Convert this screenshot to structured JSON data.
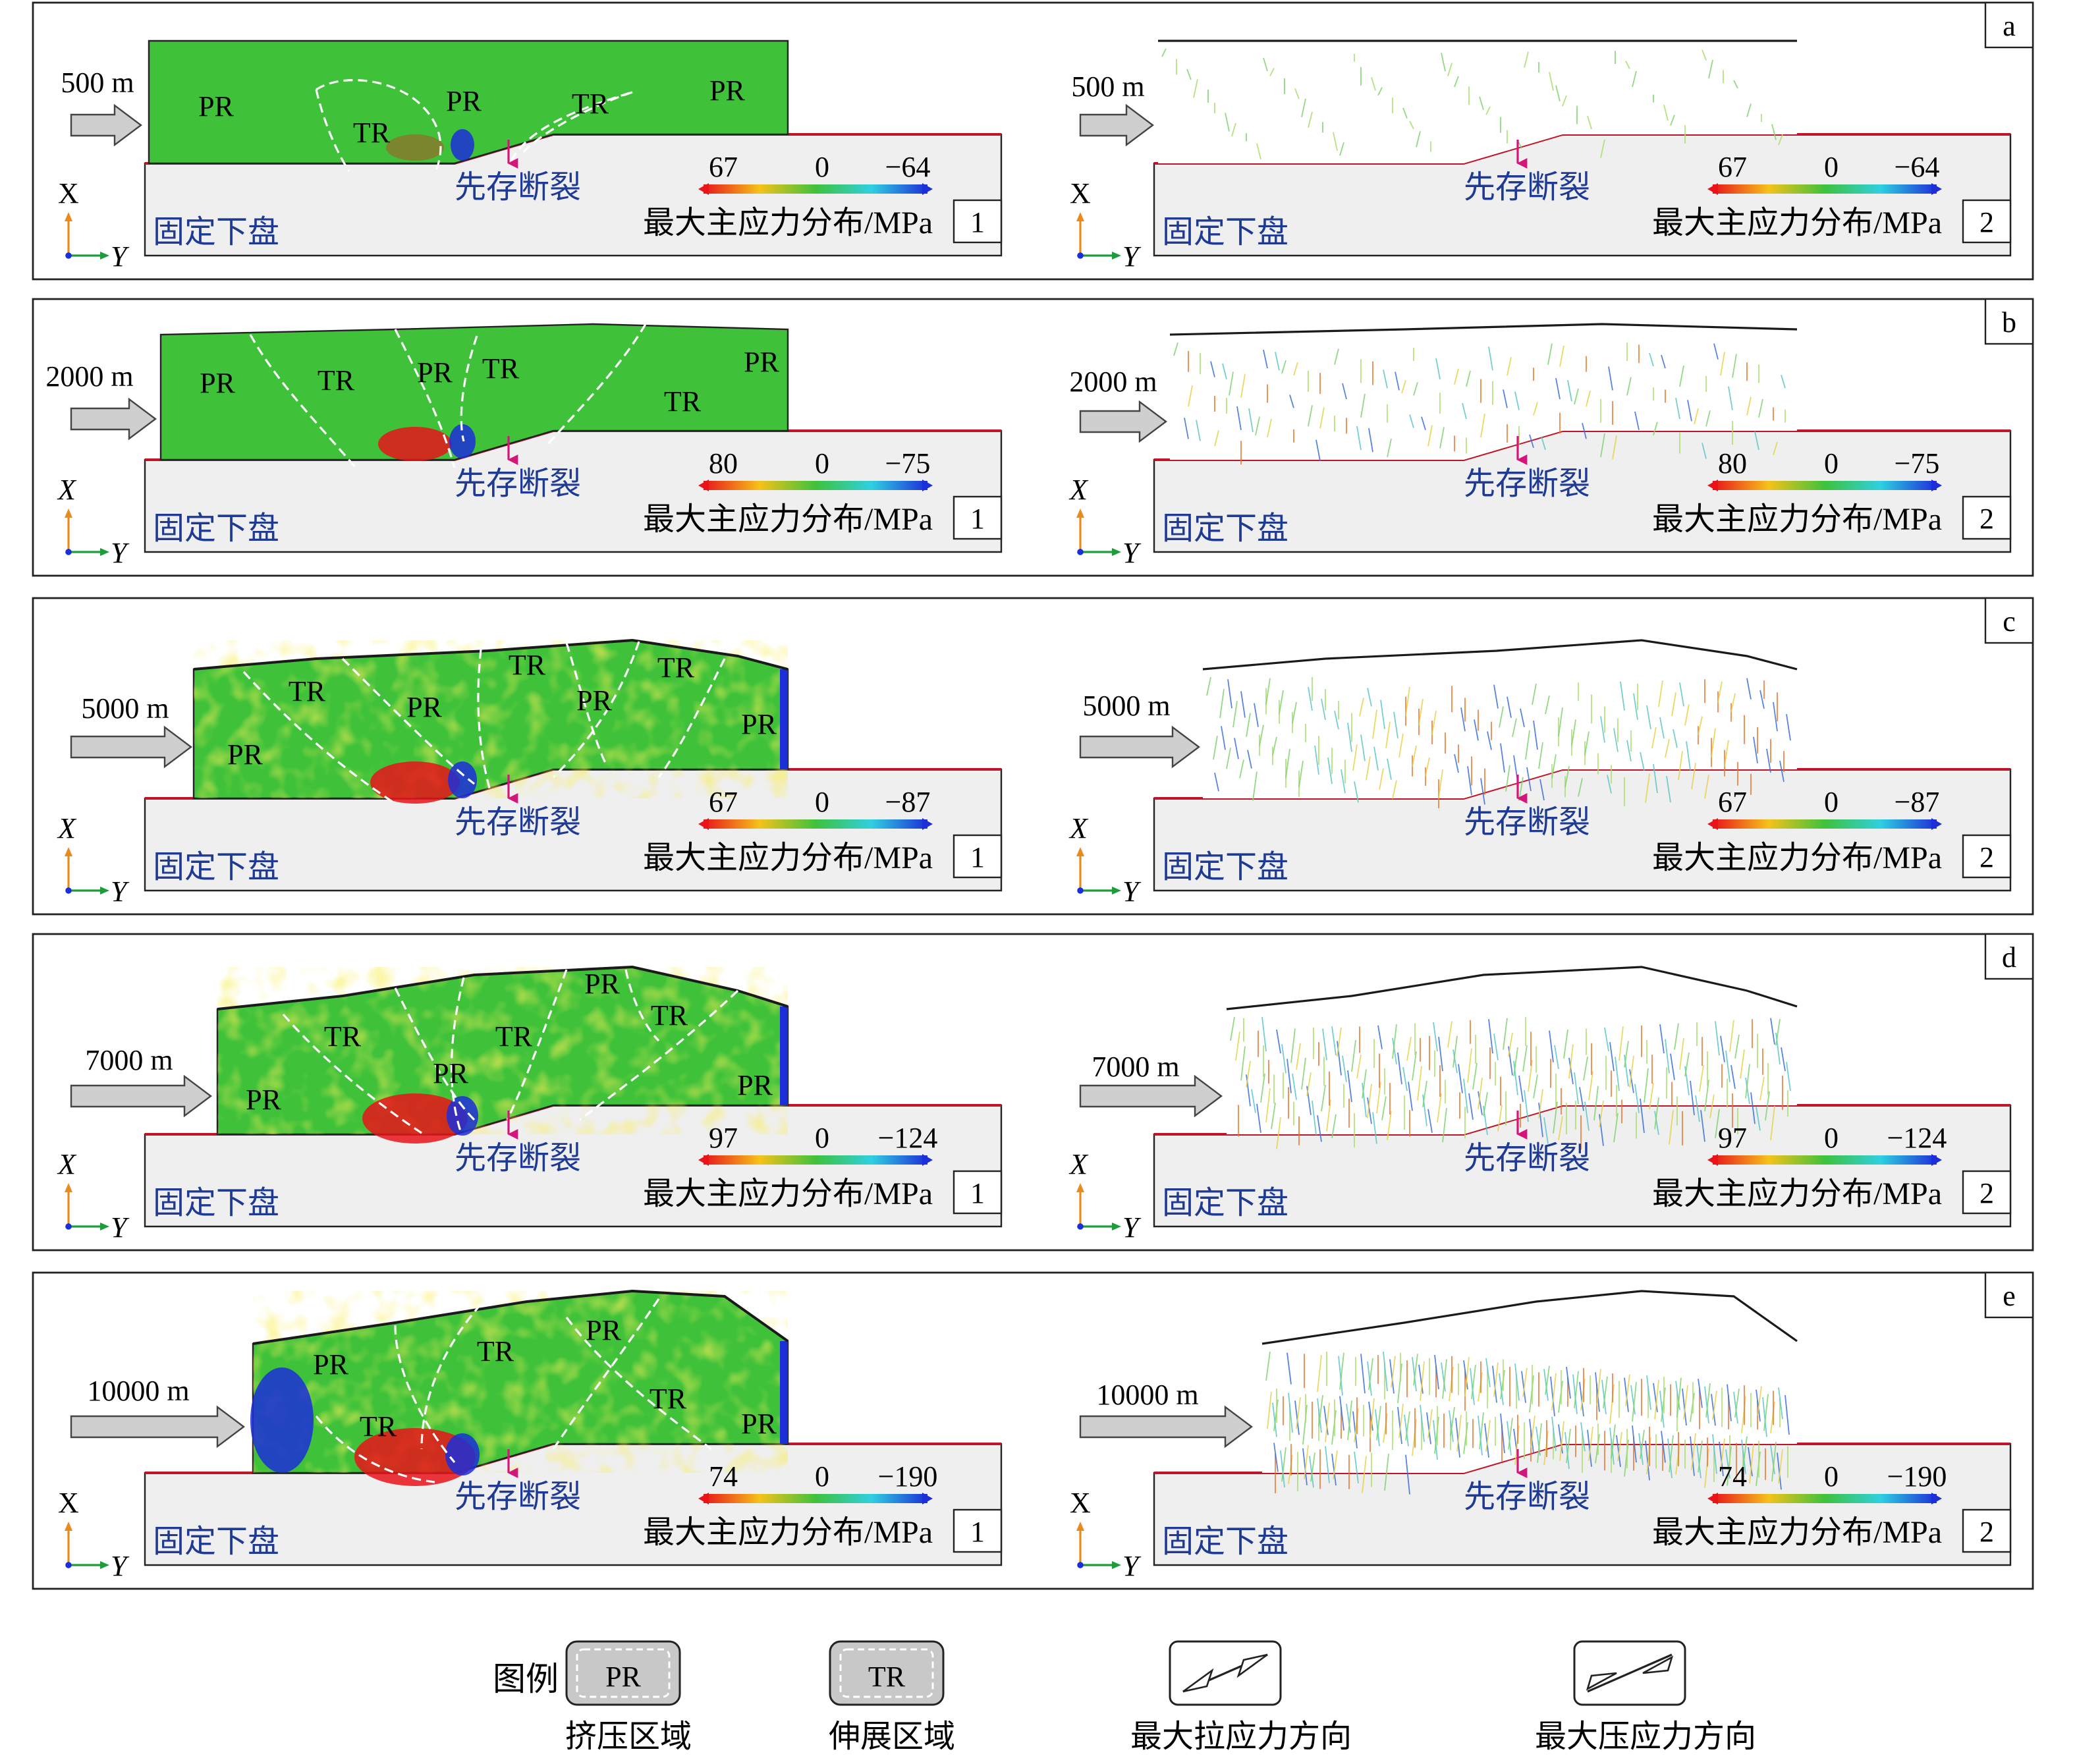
{
  "panels": [
    {
      "letter": "a",
      "distance": "500 m",
      "stage": 0,
      "left_regions": [
        "PR",
        "TR",
        "PR",
        "TR",
        "PR"
      ],
      "scale": {
        "max": "67",
        "zero": "0",
        "min": "−64"
      }
    },
    {
      "letter": "b",
      "distance": "2000 m",
      "stage": 1,
      "left_regions": [
        "PR",
        "TR",
        "PR",
        "TR",
        "TR",
        "PR"
      ],
      "scale": {
        "max": "80",
        "zero": "0",
        "min": "−75"
      }
    },
    {
      "letter": "c",
      "distance": "5000 m",
      "stage": 2,
      "left_regions": [
        "TR",
        "PR",
        "TR",
        "PR",
        "TR",
        "PR",
        "PR"
      ],
      "scale": {
        "max": "67",
        "zero": "0",
        "min": "−87"
      }
    },
    {
      "letter": "d",
      "distance": "7000 m",
      "stage": 3,
      "left_regions": [
        "TR",
        "PR",
        "TR",
        "PR",
        "TR",
        "PR",
        "PR"
      ],
      "scale": {
        "max": "97",
        "zero": "0",
        "min": "−124"
      }
    },
    {
      "letter": "e",
      "distance": "10000 m",
      "stage": 4,
      "left_regions": [
        "PR",
        "TR",
        "TR",
        "PR",
        "TR",
        "PR"
      ],
      "scale": {
        "max": "74",
        "zero": "0",
        "min": "−190"
      }
    }
  ],
  "labels": {
    "footwall": "固定下盘",
    "fault": "先存断裂",
    "scale_title": "最大主应力分布/MPa",
    "sub_left": "1",
    "sub_right": "2",
    "axis_x": "X",
    "axis_y": "Y"
  },
  "legend": {
    "title": "图例",
    "pr_box": "PR",
    "pr_label": "挤压区域",
    "tr_box": "TR",
    "tr_label": "伸展区域",
    "tension_label": "最大拉应力方向",
    "compression_label": "最大压应力方向"
  },
  "colors": {
    "fault_line": "#c0142a",
    "fault_arrow": "#d4157a",
    "label_blue": "#1f3a93",
    "footwall_fill": "#efefef",
    "green": "#3fc23a",
    "red": "#e8141a",
    "blue": "#1c2ed8",
    "push_arrow": "#cfcfcf"
  }
}
